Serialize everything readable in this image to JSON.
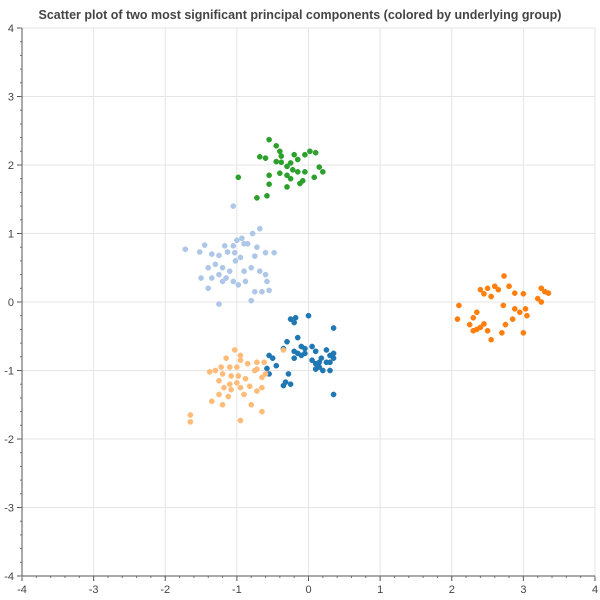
{
  "chart_data": {
    "type": "scatter",
    "title": "Scatter plot of two most significant principal components (colored by underlying group)",
    "xlabel": "",
    "ylabel": "",
    "xlim": [
      -4,
      4
    ],
    "ylim": [
      -4,
      4
    ],
    "x_ticks": [
      "-4",
      "-3",
      "-2",
      "-1",
      "0",
      "1",
      "2",
      "3",
      "4"
    ],
    "y_ticks": [
      "-4",
      "-3",
      "-2",
      "-1",
      "0",
      "1",
      "2",
      "3",
      "4"
    ],
    "grid": true,
    "legend": "none",
    "series": [
      {
        "color": "#2ca02c",
        "points": [
          [
            -0.55,
            2.37
          ],
          [
            -0.45,
            2.28
          ],
          [
            -0.4,
            2.2
          ],
          [
            -0.38,
            2.13
          ],
          [
            -0.6,
            2.1
          ],
          [
            -0.68,
            2.12
          ],
          [
            -0.45,
            2.05
          ],
          [
            -0.38,
            2.04
          ],
          [
            -0.25,
            2.03
          ],
          [
            -0.15,
            2.08
          ],
          [
            -0.05,
            2.15
          ],
          [
            0.02,
            2.2
          ],
          [
            0.1,
            2.18
          ],
          [
            -0.2,
            2.15
          ],
          [
            -0.3,
            1.98
          ],
          [
            -0.22,
            1.93
          ],
          [
            -0.3,
            1.85
          ],
          [
            -0.4,
            1.88
          ],
          [
            -0.55,
            1.85
          ],
          [
            -0.15,
            1.9
          ],
          [
            -0.05,
            1.9
          ],
          [
            0.15,
            1.97
          ],
          [
            0.2,
            1.9
          ],
          [
            0.08,
            1.82
          ],
          [
            -0.25,
            1.8
          ],
          [
            -0.08,
            1.77
          ],
          [
            -0.12,
            1.73
          ],
          [
            -0.3,
            1.68
          ],
          [
            -0.55,
            1.72
          ],
          [
            -0.58,
            1.55
          ],
          [
            -0.72,
            1.52
          ],
          [
            -0.98,
            1.82
          ]
        ]
      },
      {
        "color": "#aec7e8",
        "points": [
          [
            -1.05,
            1.4
          ],
          [
            -0.68,
            1.07
          ],
          [
            -0.78,
            1.0
          ],
          [
            -0.93,
            0.93
          ],
          [
            -1.0,
            0.9
          ],
          [
            -1.45,
            0.83
          ],
          [
            -1.17,
            0.82
          ],
          [
            -1.05,
            0.82
          ],
          [
            -0.85,
            0.85
          ],
          [
            -0.72,
            0.8
          ],
          [
            -0.6,
            0.72
          ],
          [
            -1.72,
            0.77
          ],
          [
            -1.52,
            0.73
          ],
          [
            -1.35,
            0.7
          ],
          [
            -1.25,
            0.68
          ],
          [
            -1.13,
            0.73
          ],
          [
            -1.03,
            0.72
          ],
          [
            -0.95,
            0.65
          ],
          [
            -0.75,
            0.67
          ],
          [
            -0.48,
            0.72
          ],
          [
            -1.5,
            0.35
          ],
          [
            -1.4,
            0.5
          ],
          [
            -1.3,
            0.55
          ],
          [
            -1.2,
            0.5
          ],
          [
            -1.1,
            0.45
          ],
          [
            -1.02,
            0.6
          ],
          [
            -0.9,
            0.45
          ],
          [
            -0.8,
            0.5
          ],
          [
            -0.68,
            0.45
          ],
          [
            -0.6,
            0.4
          ],
          [
            -1.35,
            0.35
          ],
          [
            -1.25,
            0.4
          ],
          [
            -1.15,
            0.35
          ],
          [
            -1.05,
            0.3
          ],
          [
            -0.98,
            0.25
          ],
          [
            -0.88,
            0.3
          ],
          [
            -1.4,
            0.2
          ],
          [
            -1.2,
            0.3
          ],
          [
            -0.75,
            0.15
          ],
          [
            -0.65,
            0.15
          ],
          [
            -0.55,
            0.17
          ],
          [
            -0.58,
            0.3
          ],
          [
            -1.25,
            -0.03
          ],
          [
            -0.8,
            0.02
          ],
          [
            -0.9,
            0.85
          ]
        ]
      },
      {
        "color": "#ff7f0e",
        "points": [
          [
            2.73,
            0.38
          ],
          [
            2.5,
            0.2
          ],
          [
            2.6,
            0.23
          ],
          [
            2.65,
            0.18
          ],
          [
            2.4,
            0.18
          ],
          [
            2.45,
            0.12
          ],
          [
            2.55,
            0.08
          ],
          [
            2.8,
            0.23
          ],
          [
            2.88,
            0.13
          ],
          [
            3.0,
            0.12
          ],
          [
            3.2,
            0.05
          ],
          [
            3.25,
            0.2
          ],
          [
            3.3,
            0.15
          ],
          [
            3.35,
            0.13
          ],
          [
            3.25,
            0.0
          ],
          [
            2.1,
            -0.05
          ],
          [
            2.35,
            -0.15
          ],
          [
            2.3,
            -0.23
          ],
          [
            2.72,
            -0.05
          ],
          [
            2.88,
            -0.1
          ],
          [
            2.95,
            -0.15
          ],
          [
            3.03,
            -0.1
          ],
          [
            3.05,
            -0.2
          ],
          [
            2.85,
            -0.25
          ],
          [
            2.75,
            -0.33
          ],
          [
            2.45,
            -0.32
          ],
          [
            2.4,
            -0.37
          ],
          [
            2.35,
            -0.4
          ],
          [
            2.5,
            -0.42
          ],
          [
            2.25,
            -0.33
          ],
          [
            2.3,
            -0.42
          ],
          [
            2.7,
            -0.45
          ],
          [
            3.0,
            -0.45
          ],
          [
            2.55,
            -0.55
          ],
          [
            2.08,
            -0.25
          ]
        ]
      },
      {
        "color": "#1f77b4",
        "points": [
          [
            -0.25,
            -0.25
          ],
          [
            -0.18,
            -0.23
          ],
          [
            -0.2,
            -0.3
          ],
          [
            0.0,
            -0.2
          ],
          [
            0.35,
            -0.38
          ],
          [
            -0.15,
            -0.52
          ],
          [
            -0.3,
            -0.58
          ],
          [
            -0.1,
            -0.65
          ],
          [
            -0.05,
            -0.68
          ],
          [
            0.05,
            -0.65
          ],
          [
            -0.35,
            -0.68
          ],
          [
            -0.2,
            -0.72
          ],
          [
            -0.1,
            -0.78
          ],
          [
            -0.15,
            -0.75
          ],
          [
            -0.05,
            -0.75
          ],
          [
            0.1,
            -0.72
          ],
          [
            0.25,
            -0.7
          ],
          [
            0.3,
            -0.78
          ],
          [
            0.35,
            -0.75
          ],
          [
            0.35,
            -0.82
          ],
          [
            0.3,
            -0.88
          ],
          [
            0.25,
            -0.88
          ],
          [
            0.18,
            -0.82
          ],
          [
            0.15,
            -0.88
          ],
          [
            0.1,
            -0.9
          ],
          [
            0.1,
            -0.98
          ],
          [
            0.2,
            -1.0
          ],
          [
            0.3,
            -1.0
          ],
          [
            -0.55,
            -0.78
          ],
          [
            -0.5,
            -0.82
          ],
          [
            -0.45,
            -0.93
          ],
          [
            -0.58,
            -0.97
          ],
          [
            -0.55,
            -1.05
          ],
          [
            -0.28,
            -1.05
          ],
          [
            -0.32,
            -1.17
          ],
          [
            -0.25,
            -1.2
          ],
          [
            -0.35,
            -1.22
          ],
          [
            0.35,
            -1.35
          ],
          [
            -0.2,
            -0.82
          ],
          [
            0.05,
            -0.85
          ],
          [
            0.15,
            -0.95
          ]
        ]
      },
      {
        "color": "#ffbb78",
        "points": [
          [
            -1.03,
            -0.7
          ],
          [
            -0.95,
            -0.78
          ],
          [
            -0.95,
            -0.85
          ],
          [
            -1.15,
            -0.82
          ],
          [
            -0.85,
            -0.9
          ],
          [
            -0.72,
            -0.88
          ],
          [
            -0.62,
            -0.88
          ],
          [
            -0.72,
            -0.98
          ],
          [
            -0.6,
            -1.05
          ],
          [
            -0.65,
            -1.1
          ],
          [
            -0.75,
            -1.0
          ],
          [
            -1.0,
            -0.95
          ],
          [
            -1.1,
            -0.95
          ],
          [
            -1.22,
            -0.95
          ],
          [
            -1.3,
            -1.0
          ],
          [
            -1.2,
            -1.05
          ],
          [
            -1.08,
            -1.08
          ],
          [
            -0.98,
            -1.08
          ],
          [
            -0.88,
            -1.12
          ],
          [
            -1.0,
            -1.18
          ],
          [
            -1.1,
            -1.2
          ],
          [
            -1.25,
            -1.15
          ],
          [
            -1.18,
            -1.25
          ],
          [
            -1.08,
            -1.28
          ],
          [
            -0.95,
            -1.25
          ],
          [
            -0.82,
            -1.23
          ],
          [
            -0.65,
            -1.25
          ],
          [
            -1.25,
            -1.35
          ],
          [
            -1.12,
            -1.38
          ],
          [
            -0.9,
            -1.35
          ],
          [
            -0.72,
            -1.3
          ],
          [
            -1.35,
            -1.45
          ],
          [
            -1.2,
            -1.5
          ],
          [
            -0.8,
            -1.5
          ],
          [
            -0.65,
            -1.6
          ],
          [
            -0.95,
            -1.73
          ],
          [
            -1.65,
            -1.65
          ],
          [
            -1.65,
            -1.75
          ],
          [
            -1.38,
            -1.02
          ],
          [
            -0.35,
            -0.7
          ]
        ]
      }
    ]
  }
}
